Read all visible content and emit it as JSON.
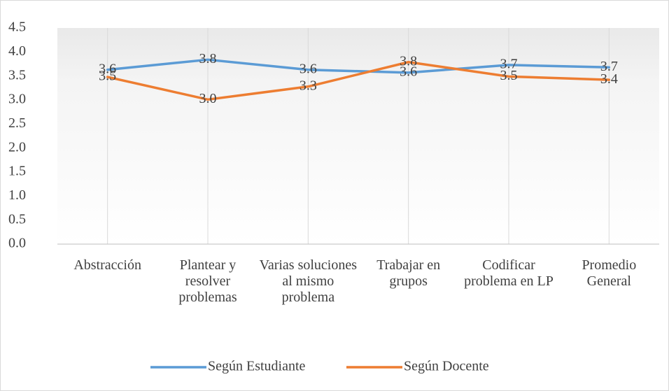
{
  "chart_data": {
    "type": "line",
    "categories": [
      "Abstracción",
      "Plantear y resolver problemas",
      "Varias soluciones al mismo problema",
      "Trabajar en grupos",
      "Codificar problema en LP",
      "Promedio General"
    ],
    "series": [
      {
        "name": "Según Estudiante",
        "color": "#5b9bd5",
        "values": [
          3.63,
          3.84,
          3.63,
          3.57,
          3.73,
          3.68
        ],
        "value_labels": [
          "3.6",
          "3.8",
          "3.6",
          "3.6",
          "3.7",
          "3.7"
        ]
      },
      {
        "name": "Según Docente",
        "color": "#ed7d31",
        "values": [
          3.48,
          3.01,
          3.28,
          3.79,
          3.49,
          3.42
        ],
        "value_labels": [
          "3.5",
          "3.0",
          "3.3",
          "3.8",
          "3.5",
          "3.4"
        ]
      }
    ],
    "ylim": [
      0,
      4.5
    ],
    "yticks": [
      {
        "value": 0,
        "label": "0.0"
      },
      0.5,
      {
        "value": 1,
        "label": "1.0"
      },
      1.5,
      {
        "value": 2,
        "label": "2.0"
      },
      2.5,
      {
        "value": 3,
        "label": "3.0"
      },
      3.5,
      {
        "value": 4,
        "label": "4.0"
      },
      4.5
    ],
    "grid": true,
    "legend": "bottom"
  }
}
